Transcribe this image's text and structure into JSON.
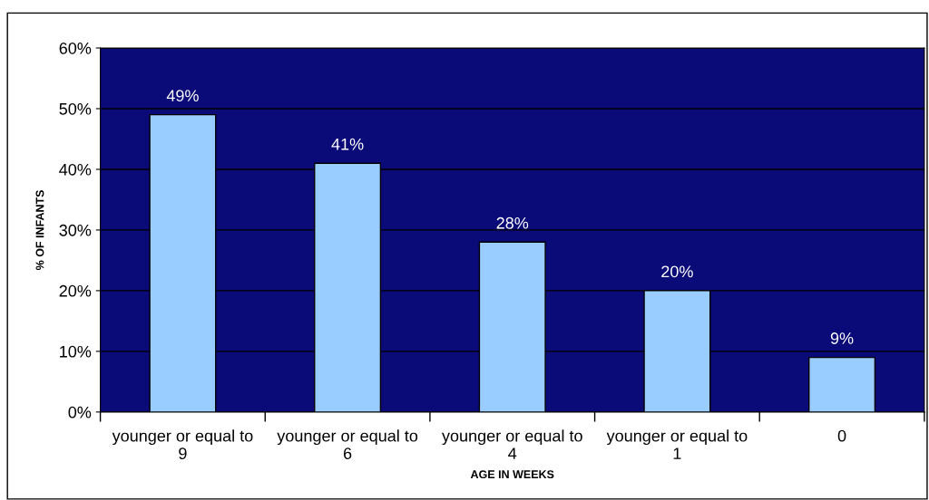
{
  "chart_data": {
    "type": "bar",
    "xlabel": "AGE IN WEEKS",
    "ylabel": "% OF INFANTS",
    "categories": [
      "younger or equal to\n9",
      "younger or equal to\n6",
      "younger or equal to\n4",
      "younger or equal to\n1",
      "0"
    ],
    "values": [
      49,
      41,
      28,
      20,
      9
    ],
    "value_labels": [
      "49%",
      "41%",
      "28%",
      "20%",
      "9%"
    ],
    "color": "#99ccff",
    "ylim": [
      0,
      60
    ],
    "yticks": [
      {
        "value": 0,
        "label": "0%"
      },
      {
        "value": 10,
        "label": "10%"
      },
      {
        "value": 20,
        "label": "20%"
      },
      {
        "value": 30,
        "label": "30%"
      },
      {
        "value": 40,
        "label": "40%"
      },
      {
        "value": 50,
        "label": "50%"
      },
      {
        "value": 60,
        "label": "60%"
      }
    ],
    "grid": "y",
    "legend": false
  }
}
